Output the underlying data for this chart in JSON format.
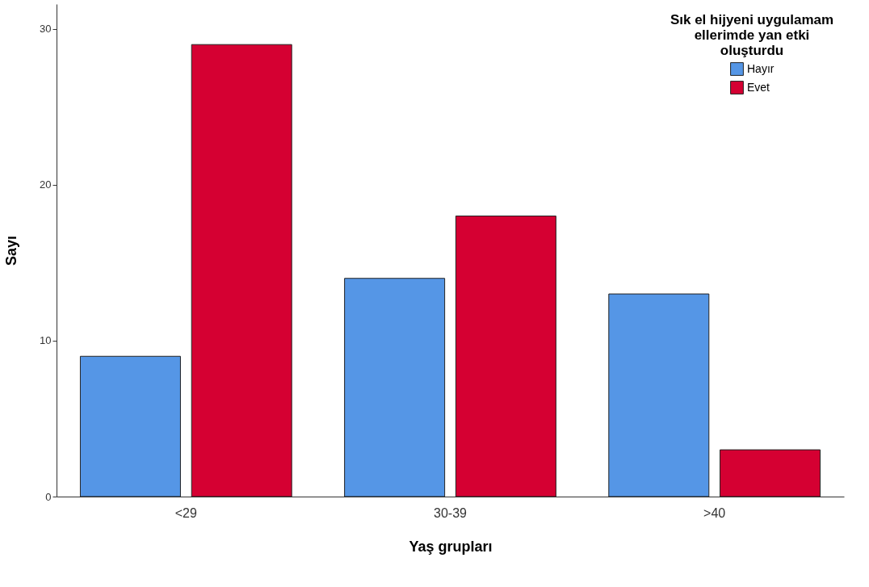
{
  "chart_data": {
    "type": "bar",
    "xlabel": "Yaş grupları",
    "ylabel": "Sayı",
    "legend_title": "Sık el hijyeni uygulamam ellerimde yan etki oluşturdu",
    "categories": [
      "<29",
      "30-39",
      ">40"
    ],
    "series": [
      {
        "name": "Hayır",
        "color": "#5596e6",
        "values": [
          9,
          14,
          13
        ]
      },
      {
        "name": "Evet",
        "color": "#d50032",
        "values": [
          29,
          18,
          3
        ]
      }
    ],
    "ylim": [
      0,
      31.6
    ],
    "yticks": [
      0,
      10,
      20,
      30
    ],
    "grid": false,
    "legend": "top right"
  }
}
